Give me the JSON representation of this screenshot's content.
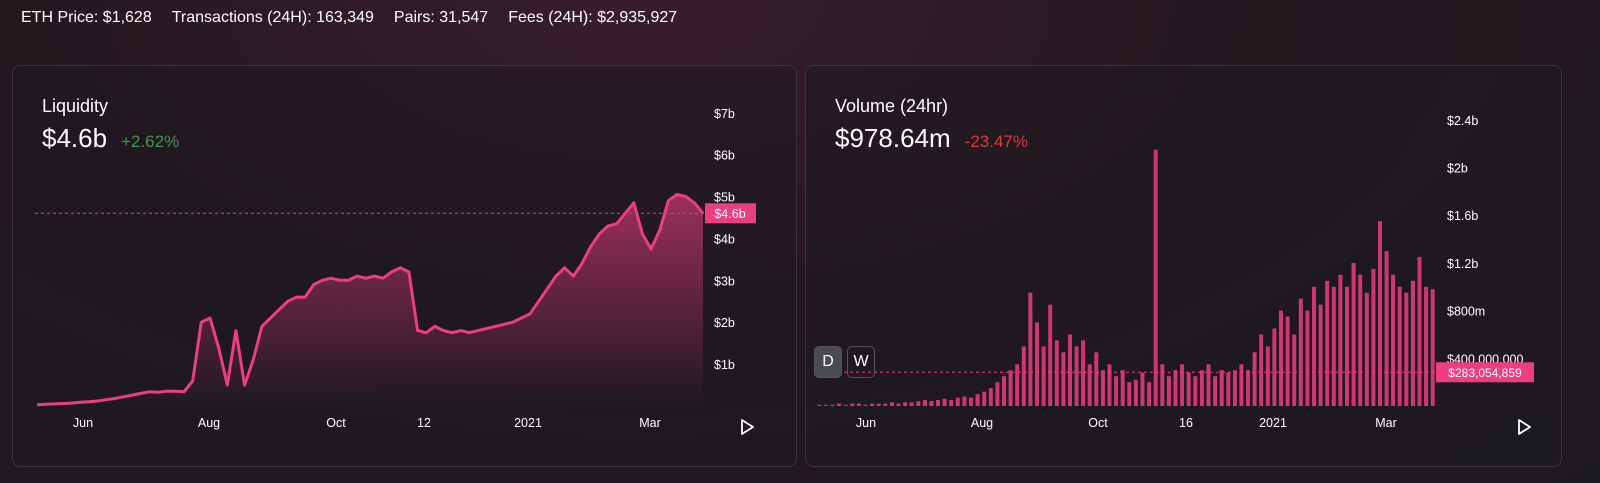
{
  "top_stats": {
    "eth_price": "ETH Price: $1,628",
    "transactions": "Transactions (24H): 163,349",
    "pairs": "Pairs: 31,547",
    "fees": "Fees (24H): $2,935,927"
  },
  "colors": {
    "accent": "#ec3f7e",
    "positive": "#3f9a4a",
    "negative": "#e0393d"
  },
  "liquidity": {
    "title": "Liquidity",
    "value": "$4.6b",
    "change": "+2.62%",
    "marker_label": "$4.6b",
    "chart_data": {
      "type": "area",
      "title": "Liquidity",
      "x_tick_labels": [
        "Jun",
        "Aug",
        "Oct",
        "12",
        "2021",
        "Mar"
      ],
      "y_tick_labels": [
        "$1b",
        "$2b",
        "$3b",
        "$4b",
        "$5b",
        "$6b",
        "$7b"
      ],
      "ylim": [
        0,
        7.4
      ],
      "unit": "billion USD",
      "current_value": 4.6,
      "series": [
        {
          "name": "Liquidity",
          "values": [
            0.03,
            0.04,
            0.05,
            0.06,
            0.07,
            0.09,
            0.1,
            0.12,
            0.15,
            0.18,
            0.22,
            0.26,
            0.3,
            0.34,
            0.33,
            0.35,
            0.35,
            0.34,
            0.6,
            2.0,
            2.1,
            1.4,
            0.5,
            1.8,
            0.5,
            1.1,
            1.9,
            2.1,
            2.3,
            2.5,
            2.6,
            2.6,
            2.9,
            3.0,
            3.05,
            3.0,
            3.0,
            3.1,
            3.05,
            3.1,
            3.05,
            3.2,
            3.3,
            3.2,
            1.8,
            1.75,
            1.9,
            1.8,
            1.75,
            1.8,
            1.75,
            1.8,
            1.85,
            1.9,
            1.95,
            2.0,
            2.1,
            2.2,
            2.5,
            2.8,
            3.1,
            3.3,
            3.1,
            3.4,
            3.8,
            4.1,
            4.3,
            4.35,
            4.6,
            4.85,
            4.1,
            3.75,
            4.2,
            4.9,
            5.05,
            5.0,
            4.85,
            4.6
          ]
        }
      ]
    }
  },
  "volume": {
    "title": "Volume (24hr)",
    "value": "$978.64m",
    "change": "-23.47%",
    "marker_label": "$283,054,859",
    "btn_day": "D",
    "btn_week": "W",
    "chart_data": {
      "type": "bar",
      "title": "Volume (24hr)",
      "x_tick_labels": [
        "Jun",
        "Aug",
        "Oct",
        "16",
        "2021",
        "Mar"
      ],
      "y_tick_labels": [
        "$400,000,000",
        "$800m",
        "$1.2b",
        "$1.6b",
        "$2b",
        "$2.4b"
      ],
      "ylim": [
        0,
        2.6
      ],
      "unit": "billion USD",
      "reference_value": 0.283,
      "series": [
        {
          "name": "Volume",
          "values": [
            0.01,
            0.01,
            0.01,
            0.02,
            0.01,
            0.02,
            0.02,
            0.01,
            0.02,
            0.02,
            0.02,
            0.03,
            0.02,
            0.03,
            0.03,
            0.04,
            0.05,
            0.04,
            0.05,
            0.06,
            0.05,
            0.07,
            0.08,
            0.07,
            0.1,
            0.12,
            0.15,
            0.2,
            0.25,
            0.3,
            0.35,
            0.5,
            0.95,
            0.7,
            0.5,
            0.85,
            0.55,
            0.45,
            0.6,
            0.5,
            0.55,
            0.35,
            0.45,
            0.3,
            0.35,
            0.25,
            0.3,
            0.2,
            0.22,
            0.28,
            0.2,
            2.15,
            0.35,
            0.25,
            0.3,
            0.35,
            0.28,
            0.25,
            0.3,
            0.35,
            0.25,
            0.3,
            0.28,
            0.3,
            0.35,
            0.3,
            0.45,
            0.6,
            0.5,
            0.65,
            0.8,
            0.75,
            0.6,
            0.9,
            0.8,
            1.0,
            0.85,
            1.05,
            1.0,
            1.1,
            1.0,
            1.2,
            1.1,
            0.95,
            1.15,
            1.55,
            1.3,
            1.1,
            1.0,
            0.95,
            1.05,
            1.25,
            1.0,
            0.98
          ]
        }
      ]
    }
  }
}
